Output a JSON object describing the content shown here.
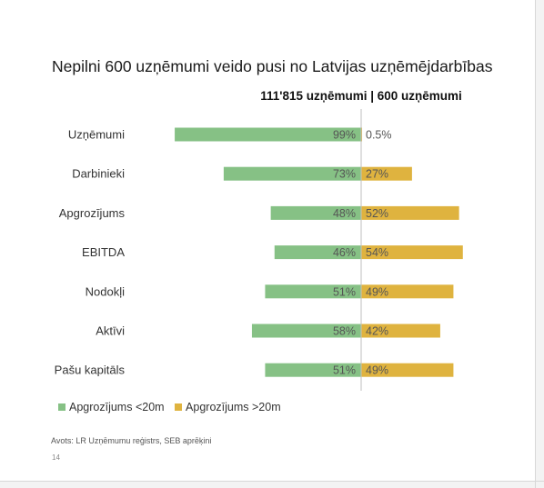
{
  "slide": {
    "title": "Nepilni 600 uzņēmumi veido pusi no Latvijas uzņēmējdarbības",
    "subtitle": "111'815 uzņēmumi | 600 uzņēmumi",
    "source": "Avots: LR Uzņēmumu reģistrs, SEB aprēķini",
    "page_number": "14"
  },
  "colors": {
    "small": "#86c185",
    "large": "#dfb33f",
    "divider": "#bfbfbf"
  },
  "chart_data": {
    "type": "bar",
    "orientation": "horizontal-diverging",
    "title": "Nepilni 600 uzņēmumi veido pusi no Latvijas uzņēmējdarbības",
    "subtitle": "111'815 uzņēmumi | 600 uzņēmumi",
    "categories": [
      "Uzņēmumi",
      "Darbinieki",
      "Apgrozījums",
      "EBITDA",
      "Nodokļi",
      "Aktīvi",
      "Pašu kapitāls"
    ],
    "series": [
      {
        "name": "Apgrozījums <20m",
        "color": "#86c185",
        "values": [
          99,
          73,
          48,
          46,
          51,
          58,
          51
        ],
        "labels": [
          "99%",
          "73%",
          "48%",
          "46%",
          "51%",
          "58%",
          "51%"
        ]
      },
      {
        "name": "Apgrozījums >20m",
        "color": "#dfb33f",
        "values": [
          0.5,
          27,
          52,
          54,
          49,
          42,
          49
        ],
        "labels": [
          "0.5%",
          "27%",
          "52%",
          "54%",
          "49%",
          "42%",
          "49%"
        ]
      }
    ],
    "unit": "%",
    "legend_position": "bottom-left",
    "grid": false
  }
}
